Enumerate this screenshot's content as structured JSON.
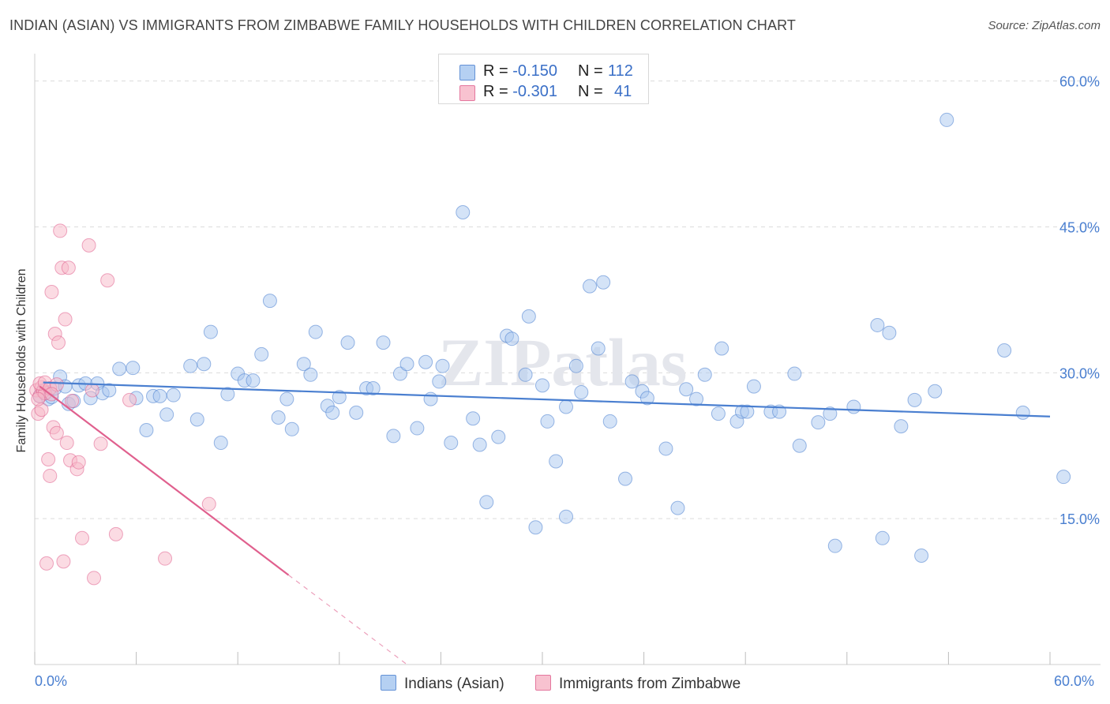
{
  "title": "INDIAN (ASIAN) VS IMMIGRANTS FROM ZIMBABWE FAMILY HOUSEHOLDS WITH CHILDREN CORRELATION CHART",
  "source": "Source: ZipAtlas.com",
  "watermark": "ZIPatlas",
  "stats": [
    {
      "r_label": "R = ",
      "r_value": "-0.150",
      "n_label": "N = ",
      "n_value": "112",
      "color": "#a9c8f0"
    },
    {
      "r_label": "R = ",
      "r_value": "-0.301",
      "n_label": "N = ",
      "n_value": "41",
      "color": "#f7b8c8"
    }
  ],
  "legend": [
    "Indians (Asian)",
    "Immigrants from Zimbabwe"
  ],
  "x_min_label": "0.0%",
  "x_max_label": "60.0%",
  "chart_data": {
    "type": "scatter",
    "title": "INDIAN (ASIAN) VS IMMIGRANTS FROM ZIMBABWE FAMILY HOUSEHOLDS WITH CHILDREN CORRELATION CHART",
    "xlabel": "",
    "ylabel": "Family Households with Children",
    "xlim": [
      0,
      60
    ],
    "ylim": [
      0,
      62
    ],
    "y_ticks": [
      15,
      30,
      45,
      60
    ],
    "y_tick_labels": [
      "15.0%",
      "30.0%",
      "45.0%",
      "60.0%"
    ],
    "series": [
      {
        "name": "Indians (Asian)",
        "color": "#4a7fd0",
        "fill": "#a9c8f0",
        "trend": {
          "x0": 0.5,
          "y0": 29.0,
          "x1": 60.0,
          "y1": 25.5
        },
        "points": [
          [
            0.3,
            27.6
          ],
          [
            0.5,
            28.2
          ],
          [
            0.6,
            27.9
          ],
          [
            0.8,
            27.3
          ],
          [
            1.0,
            27.5
          ],
          [
            1.2,
            28.4
          ],
          [
            1.5,
            29.6
          ],
          [
            1.8,
            28.6
          ],
          [
            2.0,
            26.8
          ],
          [
            2.3,
            27.1
          ],
          [
            2.6,
            28.7
          ],
          [
            3.0,
            28.9
          ],
          [
            3.3,
            27.4
          ],
          [
            3.7,
            28.9
          ],
          [
            4.0,
            27.9
          ],
          [
            4.4,
            28.2
          ],
          [
            5.0,
            30.4
          ],
          [
            5.8,
            30.5
          ],
          [
            6.0,
            27.4
          ],
          [
            6.6,
            24.1
          ],
          [
            7.0,
            27.6
          ],
          [
            7.4,
            27.6
          ],
          [
            7.8,
            25.7
          ],
          [
            8.2,
            27.7
          ],
          [
            9.2,
            30.7
          ],
          [
            9.6,
            25.2
          ],
          [
            10.0,
            30.9
          ],
          [
            10.4,
            34.2
          ],
          [
            11.0,
            22.8
          ],
          [
            11.4,
            27.8
          ],
          [
            12.0,
            29.9
          ],
          [
            12.4,
            29.2
          ],
          [
            12.9,
            29.2
          ],
          [
            13.4,
            31.9
          ],
          [
            13.9,
            37.4
          ],
          [
            14.4,
            25.4
          ],
          [
            14.9,
            27.3
          ],
          [
            15.2,
            24.2
          ],
          [
            15.9,
            30.9
          ],
          [
            16.3,
            29.8
          ],
          [
            16.6,
            34.2
          ],
          [
            17.3,
            26.6
          ],
          [
            17.6,
            25.9
          ],
          [
            18.0,
            27.5
          ],
          [
            18.5,
            33.1
          ],
          [
            19.0,
            25.9
          ],
          [
            19.6,
            28.4
          ],
          [
            20.0,
            28.4
          ],
          [
            20.6,
            33.1
          ],
          [
            21.2,
            23.5
          ],
          [
            21.6,
            29.9
          ],
          [
            22.0,
            30.9
          ],
          [
            22.6,
            24.3
          ],
          [
            23.1,
            31.1
          ],
          [
            23.4,
            27.3
          ],
          [
            23.9,
            29.1
          ],
          [
            24.1,
            30.7
          ],
          [
            24.6,
            22.8
          ],
          [
            25.3,
            46.5
          ],
          [
            25.9,
            25.3
          ],
          [
            26.3,
            22.6
          ],
          [
            26.7,
            16.7
          ],
          [
            27.4,
            23.4
          ],
          [
            27.9,
            33.8
          ],
          [
            28.2,
            33.5
          ],
          [
            29.0,
            29.8
          ],
          [
            29.2,
            35.8
          ],
          [
            29.6,
            14.1
          ],
          [
            30.0,
            28.7
          ],
          [
            30.3,
            25.0
          ],
          [
            30.8,
            20.9
          ],
          [
            31.4,
            15.2
          ],
          [
            31.4,
            26.5
          ],
          [
            32.0,
            30.7
          ],
          [
            32.3,
            28.0
          ],
          [
            32.8,
            38.9
          ],
          [
            33.3,
            32.5
          ],
          [
            33.6,
            39.3
          ],
          [
            34.0,
            25.0
          ],
          [
            34.9,
            19.1
          ],
          [
            35.3,
            29.1
          ],
          [
            35.9,
            28.1
          ],
          [
            36.2,
            27.4
          ],
          [
            37.3,
            22.2
          ],
          [
            38.0,
            16.1
          ],
          [
            38.5,
            28.3
          ],
          [
            39.1,
            27.3
          ],
          [
            39.6,
            29.8
          ],
          [
            40.4,
            25.8
          ],
          [
            40.6,
            32.5
          ],
          [
            41.5,
            25.0
          ],
          [
            41.8,
            26.0
          ],
          [
            42.1,
            26.0
          ],
          [
            42.5,
            28.6
          ],
          [
            43.5,
            26.0
          ],
          [
            44.0,
            26.0
          ],
          [
            44.9,
            29.9
          ],
          [
            45.2,
            22.5
          ],
          [
            46.3,
            24.9
          ],
          [
            47.0,
            25.8
          ],
          [
            47.3,
            12.2
          ],
          [
            48.4,
            26.5
          ],
          [
            49.8,
            34.9
          ],
          [
            50.1,
            13.0
          ],
          [
            50.5,
            34.1
          ],
          [
            51.2,
            24.5
          ],
          [
            52.0,
            27.2
          ],
          [
            52.4,
            11.2
          ],
          [
            53.2,
            28.1
          ],
          [
            57.3,
            32.3
          ],
          [
            58.4,
            25.9
          ],
          [
            60.8,
            19.3
          ],
          [
            53.9,
            56.0
          ]
        ]
      },
      {
        "name": "Immigrants from Zimbabwe",
        "color": "#e0608e",
        "fill": "#f7b8c8",
        "trend": {
          "x0": 0.3,
          "y0": 28.6,
          "x1": 15.0,
          "y1": 9.2,
          "dash_x1": 22.0,
          "dash_y1": 0.0
        },
        "points": [
          [
            0.1,
            28.2
          ],
          [
            0.2,
            25.8
          ],
          [
            0.3,
            27.6
          ],
          [
            0.4,
            28.5
          ],
          [
            0.4,
            26.2
          ],
          [
            0.5,
            28.1
          ],
          [
            0.6,
            27.9
          ],
          [
            0.7,
            10.4
          ],
          [
            0.8,
            21.1
          ],
          [
            0.9,
            19.4
          ],
          [
            1.0,
            38.3
          ],
          [
            1.1,
            24.4
          ],
          [
            1.2,
            34.0
          ],
          [
            1.3,
            23.8
          ],
          [
            1.4,
            33.1
          ],
          [
            1.5,
            44.6
          ],
          [
            1.6,
            40.8
          ],
          [
            1.7,
            10.6
          ],
          [
            1.8,
            35.5
          ],
          [
            1.9,
            22.8
          ],
          [
            2.0,
            40.8
          ],
          [
            2.1,
            21.0
          ],
          [
            2.2,
            27.1
          ],
          [
            2.5,
            20.1
          ],
          [
            2.6,
            20.8
          ],
          [
            2.8,
            13.0
          ],
          [
            3.2,
            43.1
          ],
          [
            3.4,
            28.2
          ],
          [
            3.5,
            8.9
          ],
          [
            3.9,
            22.7
          ],
          [
            4.3,
            39.5
          ],
          [
            4.8,
            13.4
          ],
          [
            5.6,
            27.2
          ],
          [
            7.7,
            10.9
          ],
          [
            10.3,
            16.5
          ],
          [
            0.3,
            28.9
          ],
          [
            0.6,
            29.0
          ],
          [
            0.9,
            28.4
          ],
          [
            1.3,
            28.8
          ],
          [
            0.2,
            27.3
          ],
          [
            1.0,
            27.8
          ]
        ]
      }
    ]
  }
}
